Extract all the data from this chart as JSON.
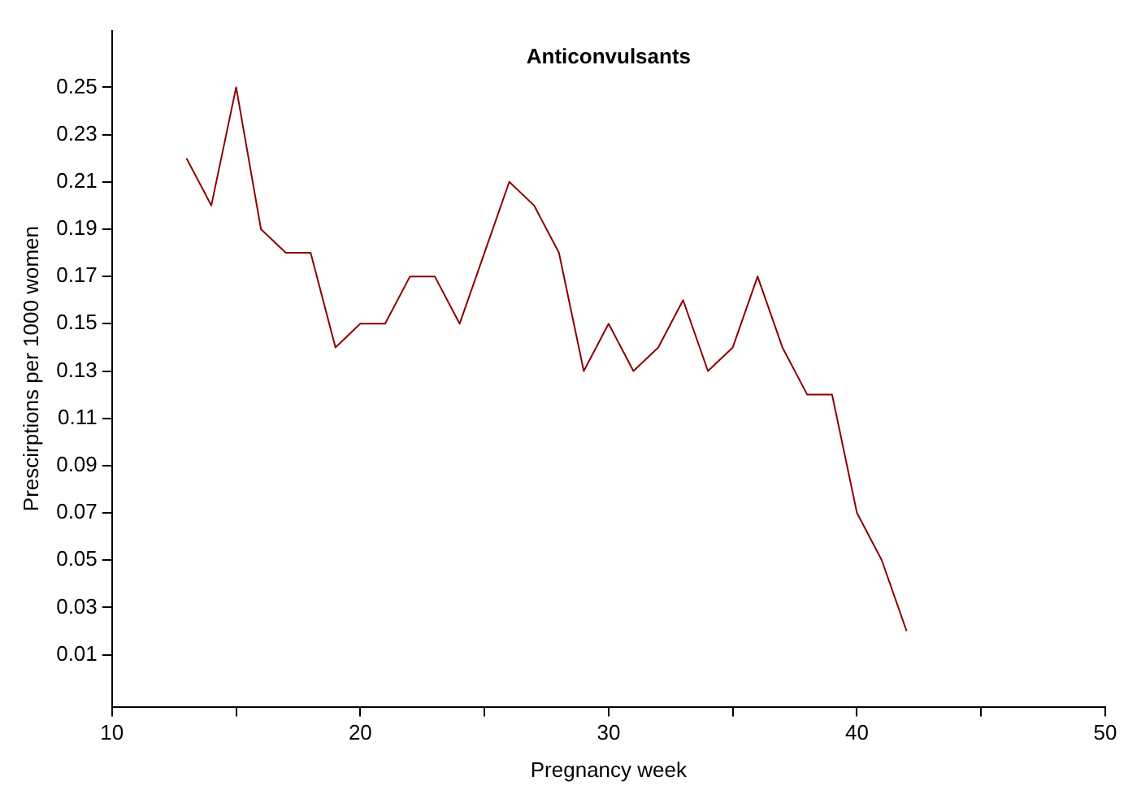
{
  "chart_data": {
    "type": "line",
    "title": "Anticonvulsants",
    "xlabel": "Pregnancy week",
    "ylabel": "Prescirptions per 1000 women",
    "x": [
      13,
      14,
      15,
      16,
      17,
      18,
      19,
      20,
      21,
      22,
      23,
      24,
      25,
      26,
      27,
      28,
      29,
      30,
      31,
      32,
      33,
      34,
      35,
      36,
      37,
      38,
      39,
      40,
      41,
      42
    ],
    "series": [
      {
        "color": "#8b0000",
        "values": [
          0.22,
          0.2,
          0.25,
          0.19,
          0.18,
          0.18,
          0.14,
          0.15,
          0.15,
          0.17,
          0.17,
          0.15,
          0.18,
          0.21,
          0.2,
          0.18,
          0.13,
          0.15,
          0.13,
          0.14,
          0.16,
          0.13,
          0.14,
          0.17,
          0.14,
          0.12,
          0.12,
          0.07,
          0.05,
          0.02
        ]
      }
    ],
    "xlim": [
      10,
      50
    ],
    "xticks": [
      10,
      {
        "value": 15,
        "label": null
      },
      20,
      {
        "value": 25,
        "label": null
      },
      30,
      {
        "value": 35,
        "label": null
      },
      40,
      {
        "value": 45,
        "label": null
      },
      50
    ],
    "ylim": [
      -0.012,
      0.274
    ],
    "yticks": [
      0.01,
      0.03,
      0.05,
      0.07,
      0.09,
      0.11,
      0.13,
      0.15,
      0.17,
      0.19,
      0.21,
      0.23,
      0.25
    ],
    "grid": false,
    "legend": false,
    "marker": "none",
    "line_style": "solid"
  }
}
